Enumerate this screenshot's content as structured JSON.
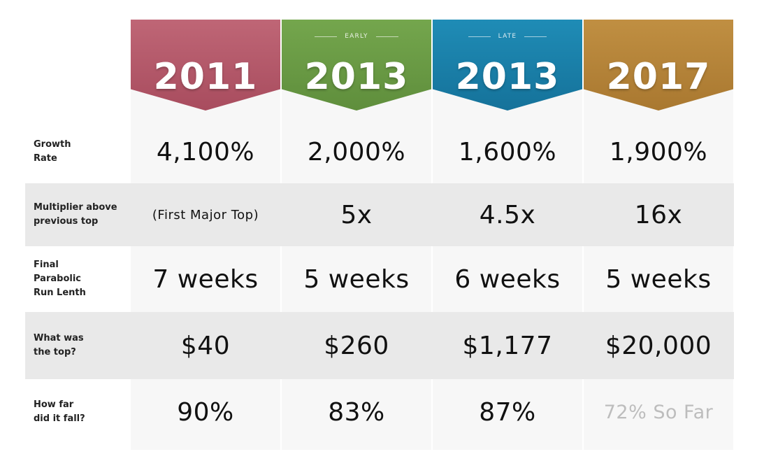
{
  "chart_data": {
    "type": "table",
    "columns": [
      {
        "qualifier": "",
        "year": "2011",
        "color": "#b35a6b"
      },
      {
        "qualifier": "EARLY",
        "year": "2013",
        "color": "#6a9a45"
      },
      {
        "qualifier": "LATE",
        "year": "2013",
        "color": "#1a80a8"
      },
      {
        "qualifier": "",
        "year": "2017",
        "color": "#b5843a"
      }
    ],
    "rows": [
      {
        "label": "Growth\nRate",
        "values": [
          "4,100%",
          "2,000%",
          "1,600%",
          "1,900%"
        ]
      },
      {
        "label": "Multiplier above\nprevious top",
        "values": [
          "(First Major Top)",
          "5x",
          "4.5x",
          "16x"
        ]
      },
      {
        "label": "Final\nParabolic\nRun Lenth",
        "values": [
          "7 weeks",
          "5 weeks",
          "6 weeks",
          "5 weeks"
        ]
      },
      {
        "label": "What was\nthe top?",
        "values": [
          "$40",
          "$260",
          "$1,177",
          "$20,000"
        ]
      },
      {
        "label": "How far\ndid it fall?",
        "values": [
          "90%",
          "83%",
          "87%",
          "72% So Far"
        ]
      }
    ]
  }
}
